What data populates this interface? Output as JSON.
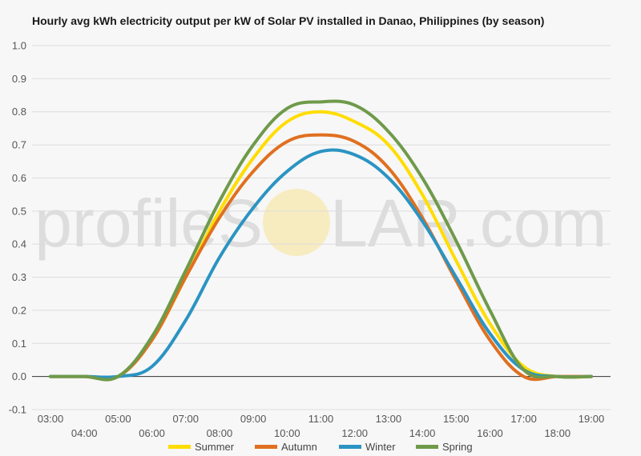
{
  "chart_data": {
    "type": "line",
    "title": "Hourly avg kWh electricity output per kW of Solar PV installed in Danao, Philippines (by season)",
    "xlabel": "",
    "ylabel": "",
    "ylim": [
      -0.1,
      1.0
    ],
    "yticks": [
      "-0.1",
      "0.0",
      "0.1",
      "0.2",
      "0.3",
      "0.4",
      "0.5",
      "0.6",
      "0.7",
      "0.8",
      "0.9",
      "1.0"
    ],
    "categories": [
      "03:00",
      "04:00",
      "05:00",
      "06:00",
      "07:00",
      "08:00",
      "09:00",
      "10:00",
      "11:00",
      "12:00",
      "13:00",
      "14:00",
      "15:00",
      "16:00",
      "17:00",
      "18:00",
      "19:00"
    ],
    "grid": true,
    "legend_position": "bottom",
    "series": [
      {
        "name": "Summer",
        "color": "#ffdd00",
        "values": [
          0.0,
          0.0,
          0.0,
          0.11,
          0.3,
          0.5,
          0.66,
          0.77,
          0.8,
          0.77,
          0.7,
          0.55,
          0.35,
          0.16,
          0.03,
          0.0,
          0.0
        ]
      },
      {
        "name": "Autumn",
        "color": "#e07020",
        "values": [
          0.0,
          0.0,
          0.0,
          0.11,
          0.3,
          0.48,
          0.62,
          0.71,
          0.73,
          0.71,
          0.63,
          0.48,
          0.29,
          0.11,
          0.0,
          0.0,
          0.0
        ]
      },
      {
        "name": "Winter",
        "color": "#2b94c3",
        "values": [
          0.0,
          0.0,
          0.0,
          0.03,
          0.17,
          0.36,
          0.51,
          0.62,
          0.68,
          0.67,
          0.6,
          0.47,
          0.3,
          0.13,
          0.02,
          0.0,
          0.0
        ]
      },
      {
        "name": "Spring",
        "color": "#6f9a4a",
        "values": [
          0.0,
          0.0,
          0.0,
          0.12,
          0.32,
          0.53,
          0.7,
          0.81,
          0.83,
          0.82,
          0.74,
          0.6,
          0.41,
          0.2,
          0.02,
          0.0,
          0.0
        ]
      }
    ]
  },
  "watermark": {
    "text_left": "profileS",
    "text_right": "LAR.com",
    "sun_color": "#f6e8b2"
  }
}
